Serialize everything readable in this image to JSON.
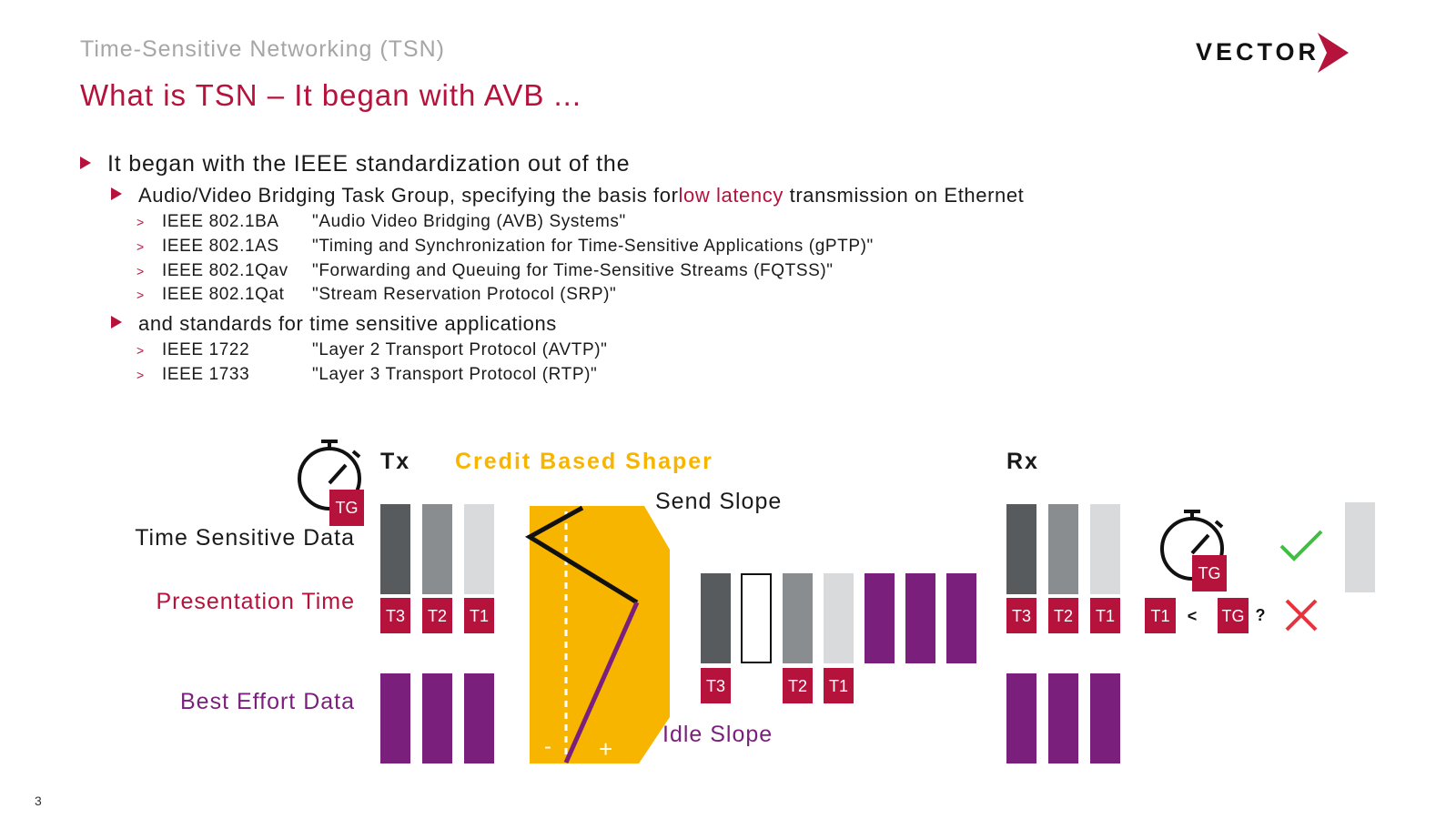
{
  "header": {
    "kicker": "Time-Sensitive Networking (TSN)",
    "title": "What is TSN – It began with AVB ...",
    "logo_text": "VECTOR"
  },
  "bullets": {
    "b1": "It began with the IEEE standardization out of the",
    "b2_pre": "Audio/Video Bridging Task Group, specifying the basis for ",
    "b2_highlight": "low latency",
    "b2_post": " transmission on Ethernet",
    "avb_standards": [
      {
        "id": "IEEE 802.1BA",
        "desc": "\"Audio Video Bridging (AVB) Systems\""
      },
      {
        "id": "IEEE 802.1AS",
        "desc": "\"Timing and Synchronization for Time-Sensitive Applications (gPTP)\""
      },
      {
        "id": "IEEE 802.1Qav",
        "desc": "\"Forwarding and Queuing for Time-Sensitive Streams (FQTSS)\""
      },
      {
        "id": "IEEE 802.1Qat",
        "desc": "\"Stream Reservation Protocol (SRP)\""
      }
    ],
    "b3": "and standards for time sensitive applications",
    "app_standards": [
      {
        "id": "IEEE 1722",
        "desc": "\"Layer 2 Transport Protocol (AVTP)\""
      },
      {
        "id": "IEEE 1733",
        "desc": "\"Layer 3 Transport Protocol (RTP)\""
      }
    ],
    "sub_marker": ">"
  },
  "diagram": {
    "tx_label": "Tx",
    "rx_label": "Rx",
    "shaper_label": "Credit Based Shaper",
    "send_slope": "Send Slope",
    "idle_slope": "Idle Slope",
    "minus": "-",
    "plus": "+",
    "row_time_sensitive": "Time Sensitive Data",
    "row_presentation": "Presentation Time",
    "row_best_effort": "Best Effort Data",
    "tg": "TG",
    "t1": "T1",
    "t2": "T2",
    "t3": "T3",
    "less_than": "<",
    "question": "?",
    "colors": {
      "brand_red": "#b5123c",
      "purple": "#7a1f7c",
      "amber": "#f7b500",
      "dark_gray": "#575b5d",
      "mid_gray": "#898d8f",
      "light_gray": "#d9dadb",
      "check_green": "#3fbf3f",
      "cross_red": "#e8323c"
    }
  },
  "footer": {
    "page_number": "3"
  }
}
